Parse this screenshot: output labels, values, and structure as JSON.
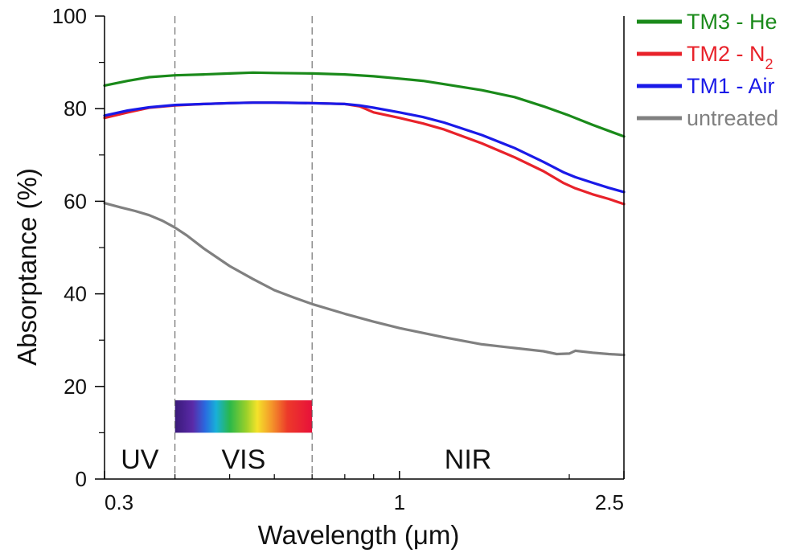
{
  "chart_data": {
    "type": "line",
    "xlabel": "Wavelength (μm)",
    "ylabel": "Absorptance (%)",
    "xscale": "log",
    "xlim": [
      0.3,
      2.5
    ],
    "ylim": [
      0,
      100
    ],
    "x_ticks": [
      0.3,
      1,
      2.5
    ],
    "x_tick_labels": [
      "0.3",
      "1",
      "2.5"
    ],
    "y_ticks": [
      0,
      20,
      40,
      60,
      80,
      100
    ],
    "y_tick_labels": [
      "0",
      "20",
      "40",
      "60",
      "80",
      "100"
    ],
    "grid": false,
    "legend_position": "top-right outside",
    "regions": [
      {
        "label": "UV",
        "x_start": 0.3,
        "x_end": 0.4
      },
      {
        "label": "VIS",
        "x_start": 0.4,
        "x_end": 0.7
      },
      {
        "label": "NIR",
        "x_start": 0.7,
        "x_end": 2.5
      }
    ],
    "region_boundaries": [
      0.4,
      0.7
    ],
    "spectrum_band": {
      "x_start": 0.4,
      "x_end": 0.7,
      "y_bottom": 10,
      "y_top": 17
    },
    "series": [
      {
        "name": "TM3 - He",
        "color": "#1a8a1a",
        "points": [
          [
            0.3,
            85.0
          ],
          [
            0.33,
            86.0
          ],
          [
            0.36,
            86.8
          ],
          [
            0.4,
            87.2
          ],
          [
            0.45,
            87.4
          ],
          [
            0.5,
            87.6
          ],
          [
            0.55,
            87.8
          ],
          [
            0.6,
            87.7
          ],
          [
            0.7,
            87.6
          ],
          [
            0.8,
            87.4
          ],
          [
            0.9,
            87.0
          ],
          [
            1.0,
            86.5
          ],
          [
            1.1,
            86.0
          ],
          [
            1.2,
            85.3
          ],
          [
            1.4,
            84.0
          ],
          [
            1.6,
            82.5
          ],
          [
            1.8,
            80.5
          ],
          [
            2.0,
            78.5
          ],
          [
            2.2,
            76.5
          ],
          [
            2.5,
            74.0
          ]
        ]
      },
      {
        "name": "TM2 - N",
        "name_subscript": "2",
        "color": "#e8222a",
        "points": [
          [
            0.3,
            78.0
          ],
          [
            0.33,
            79.2
          ],
          [
            0.36,
            80.2
          ],
          [
            0.4,
            80.7
          ],
          [
            0.45,
            81.0
          ],
          [
            0.5,
            81.2
          ],
          [
            0.55,
            81.3
          ],
          [
            0.6,
            81.3
          ],
          [
            0.7,
            81.2
          ],
          [
            0.8,
            81.0
          ],
          [
            0.85,
            80.5
          ],
          [
            0.9,
            79.2
          ],
          [
            1.0,
            78.0
          ],
          [
            1.1,
            76.8
          ],
          [
            1.2,
            75.5
          ],
          [
            1.4,
            72.5
          ],
          [
            1.6,
            69.5
          ],
          [
            1.8,
            66.5
          ],
          [
            1.95,
            64.0
          ],
          [
            2.05,
            62.8
          ],
          [
            2.2,
            61.5
          ],
          [
            2.35,
            60.5
          ],
          [
            2.5,
            59.4
          ]
        ]
      },
      {
        "name": "TM1 - Air",
        "color": "#1a1ae8",
        "points": [
          [
            0.3,
            78.5
          ],
          [
            0.33,
            79.6
          ],
          [
            0.36,
            80.3
          ],
          [
            0.4,
            80.8
          ],
          [
            0.45,
            81.0
          ],
          [
            0.5,
            81.2
          ],
          [
            0.55,
            81.3
          ],
          [
            0.6,
            81.3
          ],
          [
            0.7,
            81.2
          ],
          [
            0.8,
            81.0
          ],
          [
            0.85,
            80.7
          ],
          [
            0.9,
            80.2
          ],
          [
            1.0,
            79.2
          ],
          [
            1.1,
            78.2
          ],
          [
            1.2,
            77.0
          ],
          [
            1.4,
            74.3
          ],
          [
            1.6,
            71.5
          ],
          [
            1.8,
            68.5
          ],
          [
            1.95,
            66.3
          ],
          [
            2.05,
            65.2
          ],
          [
            2.2,
            64.0
          ],
          [
            2.35,
            62.9
          ],
          [
            2.5,
            62.0
          ]
        ]
      },
      {
        "name": "untreated",
        "color": "#808080",
        "points": [
          [
            0.3,
            59.6
          ],
          [
            0.32,
            58.7
          ],
          [
            0.34,
            57.9
          ],
          [
            0.36,
            57.0
          ],
          [
            0.38,
            55.8
          ],
          [
            0.4,
            54.3
          ],
          [
            0.42,
            52.6
          ],
          [
            0.45,
            49.8
          ],
          [
            0.5,
            46.0
          ],
          [
            0.55,
            43.2
          ],
          [
            0.6,
            40.8
          ],
          [
            0.65,
            39.2
          ],
          [
            0.7,
            37.8
          ],
          [
            0.8,
            35.7
          ],
          [
            0.9,
            34.0
          ],
          [
            1.0,
            32.6
          ],
          [
            1.2,
            30.6
          ],
          [
            1.4,
            29.1
          ],
          [
            1.6,
            28.3
          ],
          [
            1.8,
            27.6
          ],
          [
            1.9,
            27.0
          ],
          [
            2.0,
            27.1
          ],
          [
            2.05,
            27.7
          ],
          [
            2.2,
            27.3
          ],
          [
            2.35,
            27.0
          ],
          [
            2.5,
            26.8
          ]
        ]
      }
    ]
  }
}
